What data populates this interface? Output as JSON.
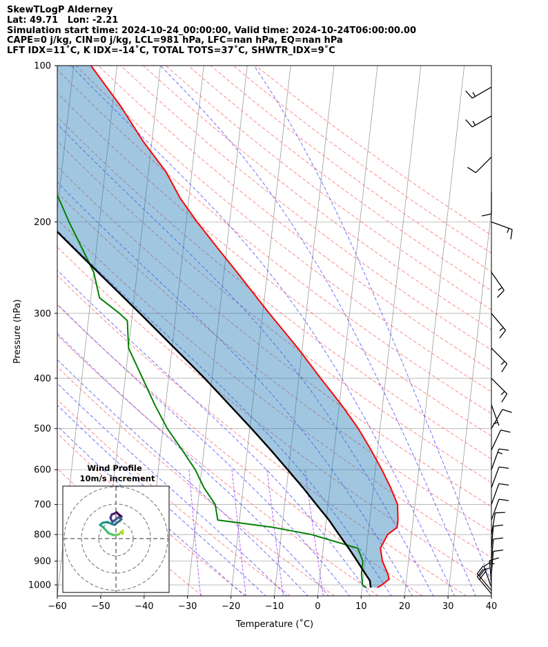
{
  "header": {
    "line1": "SkewTLogP Alderney",
    "line2": "Lat: 49.71   Lon: -2.21",
    "line3": "Simulation start time: 2024-10-24_00:00:00, Valid time: 2024-10-24T06:00:00.00",
    "line4": "CAPE=0 j/kg, CIN=0 j/kg, LCL=981 hPa, LFC=nan hPa, EQ=nan hPa",
    "line5": "LFT IDX=11˚C, K IDX=-14˚C, TOTAL TOTS=37˚C, SHWTR_IDX=9˚C"
  },
  "chart_data": {
    "type": "line",
    "subtype": "skew-t log-p",
    "xlabel": "Temperature (˚C)",
    "ylabel": "Pressure (hPa)",
    "xlim": [
      -60,
      40
    ],
    "ylim": [
      1050,
      100
    ],
    "y_scale": "log",
    "x_ticks": [
      "−60",
      "−50",
      "−40",
      "−30",
      "−20",
      "−10",
      "0",
      "10",
      "20",
      "30",
      "40"
    ],
    "y_ticks": [
      "1000",
      "900",
      "800",
      "700",
      "600",
      "500",
      "400",
      "300",
      "200",
      "100"
    ],
    "grid": true,
    "colors": {
      "temperature": "#ff0000",
      "dewpoint": "#008000",
      "parcel": "#000000",
      "cape_fill": "#1f77b4",
      "dry_adiabats": "#ff6060",
      "moist_adiabats": "#4a4aff",
      "mixing_ratio": "#9b30ff",
      "isotherms": "#9a9a9a"
    },
    "series": [
      {
        "name": "temperature",
        "points": [
          [
            1012,
            13.5
          ],
          [
            1000,
            14.5
          ],
          [
            975,
            16
          ],
          [
            950,
            15.5
          ],
          [
            900,
            14
          ],
          [
            850,
            13.2
          ],
          [
            800,
            14.5
          ],
          [
            775,
            16.5
          ],
          [
            750,
            16.5
          ],
          [
            700,
            16
          ],
          [
            650,
            14
          ],
          [
            600,
            11.5
          ],
          [
            550,
            8.5
          ],
          [
            500,
            5
          ],
          [
            450,
            0.5
          ],
          [
            400,
            -5
          ],
          [
            350,
            -11
          ],
          [
            300,
            -18.5
          ],
          [
            250,
            -27
          ],
          [
            225,
            -32
          ],
          [
            200,
            -37.5
          ],
          [
            180,
            -42
          ],
          [
            160,
            -46
          ],
          [
            140,
            -52
          ],
          [
            120,
            -58
          ],
          [
            100,
            -66
          ]
        ]
      },
      {
        "name": "dewpoint",
        "points": [
          [
            1012,
            11
          ],
          [
            1000,
            10
          ],
          [
            950,
            9.5
          ],
          [
            900,
            9.5
          ],
          [
            850,
            8
          ],
          [
            800,
            -3
          ],
          [
            775,
            -12
          ],
          [
            750,
            -25
          ],
          [
            700,
            -26
          ],
          [
            650,
            -29
          ],
          [
            600,
            -31.5
          ],
          [
            550,
            -35
          ],
          [
            500,
            -39
          ],
          [
            450,
            -42.5
          ],
          [
            400,
            -46
          ],
          [
            350,
            -50
          ],
          [
            310,
            -51
          ],
          [
            300,
            -53
          ],
          [
            280,
            -58
          ],
          [
            250,
            -60
          ],
          [
            220,
            -64
          ],
          [
            200,
            -67
          ],
          [
            180,
            -70
          ],
          [
            165,
            -73
          ],
          [
            150,
            -77
          ],
          [
            140,
            -81
          ],
          [
            120,
            -84
          ],
          [
            100,
            -87
          ]
        ]
      },
      {
        "name": "parcel",
        "points": [
          [
            1012,
            12
          ],
          [
            981,
            11.6
          ],
          [
            950,
            10.3
          ],
          [
            900,
            8.2
          ],
          [
            850,
            5.9
          ],
          [
            800,
            3.3
          ],
          [
            750,
            0.6
          ],
          [
            700,
            -2.7
          ],
          [
            650,
            -6.2
          ],
          [
            600,
            -10.2
          ],
          [
            550,
            -14.6
          ],
          [
            500,
            -19.6
          ],
          [
            450,
            -25.3
          ],
          [
            400,
            -31.7
          ],
          [
            350,
            -39.4
          ],
          [
            300,
            -48.3
          ],
          [
            250,
            -59
          ],
          [
            200,
            -72
          ],
          [
            150,
            -88
          ],
          [
            100,
            -108
          ]
        ]
      }
    ],
    "wind_barbs": [
      {
        "p": 1040,
        "speed_kt": 20,
        "dir_deg": 320
      },
      {
        "p": 1025,
        "speed_kt": 20,
        "dir_deg": 320
      },
      {
        "p": 1010,
        "speed_kt": 15,
        "dir_deg": 340
      },
      {
        "p": 990,
        "speed_kt": 15,
        "dir_deg": 355
      },
      {
        "p": 950,
        "speed_kt": 10,
        "dir_deg": 5
      },
      {
        "p": 900,
        "speed_kt": 10,
        "dir_deg": 5
      },
      {
        "p": 850,
        "speed_kt": 10,
        "dir_deg": 5
      },
      {
        "p": 800,
        "speed_kt": 10,
        "dir_deg": 10
      },
      {
        "p": 750,
        "speed_kt": 10,
        "dir_deg": 20
      },
      {
        "p": 700,
        "speed_kt": 10,
        "dir_deg": 20
      },
      {
        "p": 650,
        "speed_kt": 10,
        "dir_deg": 20
      },
      {
        "p": 600,
        "speed_kt": 15,
        "dir_deg": 20
      },
      {
        "p": 550,
        "speed_kt": 10,
        "dir_deg": 25
      },
      {
        "p": 500,
        "speed_kt": 10,
        "dir_deg": 30
      },
      {
        "p": 450,
        "speed_kt": 5,
        "dir_deg": 160
      },
      {
        "p": 400,
        "speed_kt": 15,
        "dir_deg": 135
      },
      {
        "p": 350,
        "speed_kt": 15,
        "dir_deg": 135
      },
      {
        "p": 300,
        "speed_kt": 15,
        "dir_deg": 140
      },
      {
        "p": 250,
        "speed_kt": 15,
        "dir_deg": 145
      },
      {
        "p": 200,
        "speed_kt": 15,
        "dir_deg": 110
      },
      {
        "p": 175,
        "speed_kt": 10,
        "dir_deg": 180
      },
      {
        "p": 150,
        "speed_kt": 10,
        "dir_deg": 225
      },
      {
        "p": 125,
        "speed_kt": 15,
        "dir_deg": 240
      },
      {
        "p": 110,
        "speed_kt": 15,
        "dir_deg": 240
      }
    ],
    "wind_profile_inset": {
      "title_line1": "Wind Profile",
      "title_line2": "10m/s increment",
      "ring_increment_ms": 10,
      "rings": 3
    }
  }
}
